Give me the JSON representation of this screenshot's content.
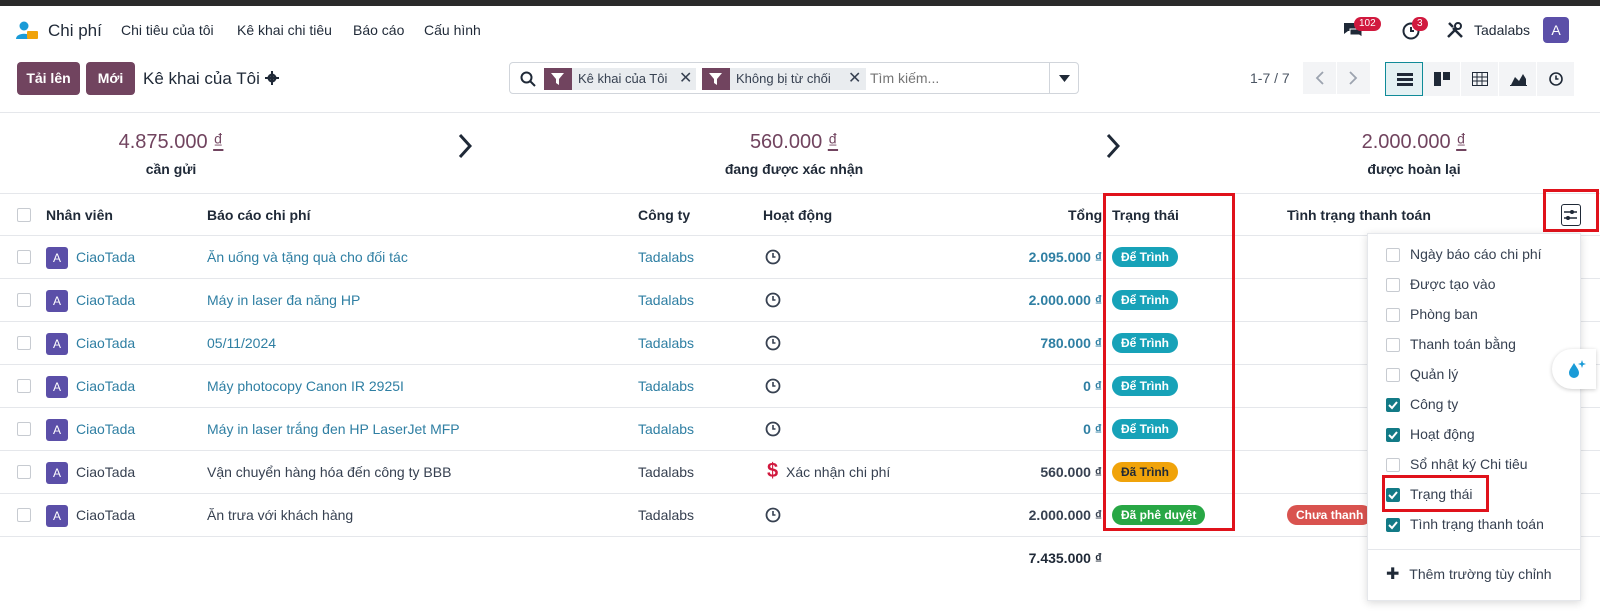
{
  "navbar": {
    "app_name": "Chi phí",
    "menu": [
      "Chi tiêu của tôi",
      "Kê khai chi tiêu",
      "Báo cáo",
      "Cấu hình"
    ],
    "messages_badge": "102",
    "activities_badge": "3",
    "company": "Tadalabs",
    "user_initial": "A"
  },
  "control_panel": {
    "upload_label": "Tải lên",
    "new_label": "Mới",
    "title": "Kê khai của Tôi",
    "facets": [
      "Kê khai của Tôi",
      "Không bị từ chối"
    ],
    "search_placeholder": "Tìm kiếm...",
    "pager": "1-7 / 7"
  },
  "summary": [
    {
      "amount": "4.875.000",
      "currency": "₫",
      "label": "cần gửi"
    },
    {
      "amount": "560.000",
      "currency": "₫",
      "label": "đang được xác nhận"
    },
    {
      "amount": "2.000.000",
      "currency": "₫",
      "label": "được hoàn lại"
    }
  ],
  "table": {
    "headers": {
      "employee": "Nhân viên",
      "report": "Báo cáo chi phí",
      "company": "Công ty",
      "activity": "Hoạt động",
      "total": "Tổng",
      "status": "Trạng thái",
      "payment": "Tình trạng thanh toán"
    },
    "rows": [
      {
        "initial": "A",
        "employee": "CiaoTada",
        "report": "Ăn uống và tặng quà cho đối tác",
        "company": "Tadalabs",
        "activity": "",
        "total": "2.095.000 ₫",
        "status": "Để Trình",
        "payment": ""
      },
      {
        "initial": "A",
        "employee": "CiaoTada",
        "report": "Máy in laser đa năng HP",
        "company": "Tadalabs",
        "activity": "",
        "total": "2.000.000 ₫",
        "status": "Để Trình",
        "payment": ""
      },
      {
        "initial": "A",
        "employee": "CiaoTada",
        "report": "05/11/2024",
        "company": "Tadalabs",
        "activity": "",
        "total": "780.000 ₫",
        "status": "Để Trình",
        "payment": ""
      },
      {
        "initial": "A",
        "employee": "CiaoTada",
        "report": "Máy photocopy Canon IR 2925I",
        "company": "Tadalabs",
        "activity": "",
        "total": "0 ₫",
        "status": "Để Trình",
        "payment": ""
      },
      {
        "initial": "A",
        "employee": "CiaoTada",
        "report": "Máy in laser trắng đen HP LaserJet MFP",
        "company": "Tadalabs",
        "activity": "",
        "total": "0 ₫",
        "status": "Để Trình",
        "payment": ""
      },
      {
        "initial": "A",
        "employee": "CiaoTada",
        "report": "Vận chuyển hàng hóa đến công ty BBB",
        "company": "Tadalabs",
        "activity": "Xác nhận chi phí",
        "total": "560.000 ₫",
        "status": "Đã Trình",
        "payment": ""
      },
      {
        "initial": "A",
        "employee": "CiaoTada",
        "report": "Ăn trưa với khách hàng",
        "company": "Tadalabs",
        "activity": "",
        "total": "2.000.000 ₫",
        "status": "Đã phê duyệt",
        "payment": "Chưa thanh"
      }
    ],
    "grand_total": "7.435.000 ₫"
  },
  "column_menu": {
    "items": [
      {
        "label": "Ngày báo cáo chi phí",
        "checked": false
      },
      {
        "label": "Được tạo vào",
        "checked": false
      },
      {
        "label": "Phòng ban",
        "checked": false
      },
      {
        "label": "Thanh toán bằng",
        "checked": false
      },
      {
        "label": "Quản lý",
        "checked": false
      },
      {
        "label": "Công ty",
        "checked": true
      },
      {
        "label": "Hoạt động",
        "checked": true
      },
      {
        "label": "Sổ nhật ký Chi tiêu",
        "checked": false
      },
      {
        "label": "Trạng thái",
        "checked": true
      },
      {
        "label": "Tình trạng thanh toán",
        "checked": true
      }
    ],
    "add_custom": "Thêm trường tùy chỉnh"
  },
  "colors": {
    "primary": "#71445f",
    "link": "#2f7fa3",
    "to_submit": "#17a2b8",
    "submitted": "#f0a30a",
    "approved": "#28a745",
    "not_paid": "#d9534f",
    "highlight": "#e0121b"
  }
}
